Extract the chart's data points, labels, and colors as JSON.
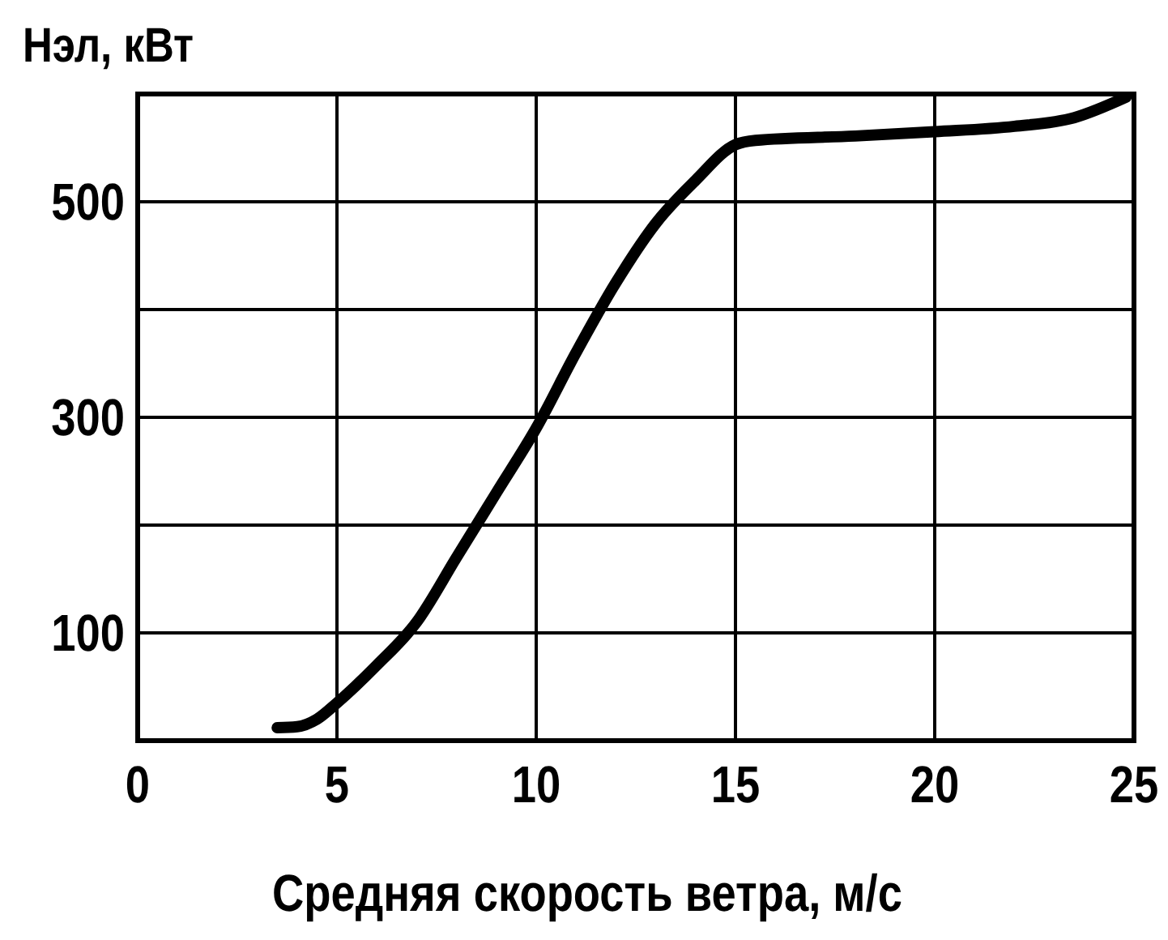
{
  "chart_data": {
    "type": "line",
    "xlabel": "Средняя скорость ветра, м/с",
    "ylabel": "Нэл, кВт",
    "xlim": [
      0,
      25
    ],
    "xticks": [
      0,
      5,
      10,
      15,
      20,
      25
    ],
    "ylim": [
      0,
      600
    ],
    "yticks": [
      {
        "value": 0,
        "label": null
      },
      100,
      {
        "value": 200,
        "label": null
      },
      300,
      {
        "value": 400,
        "label": null
      },
      500,
      {
        "value": 600,
        "label": null
      }
    ],
    "grid": true,
    "marker": "none",
    "line_style": "solid",
    "series": [
      {
        "color": "#000000",
        "x": [
          3.5,
          4,
          4.5,
          5,
          6,
          7,
          8,
          9,
          10,
          11,
          12,
          13,
          14,
          15,
          15.5,
          18,
          20,
          22,
          23.5,
          24.8
        ],
        "values": [
          12,
          13,
          20,
          35,
          70,
          110,
          170,
          230,
          290,
          360,
          425,
          480,
          520,
          553,
          557,
          561,
          565,
          570,
          578,
          597
        ]
      }
    ]
  }
}
